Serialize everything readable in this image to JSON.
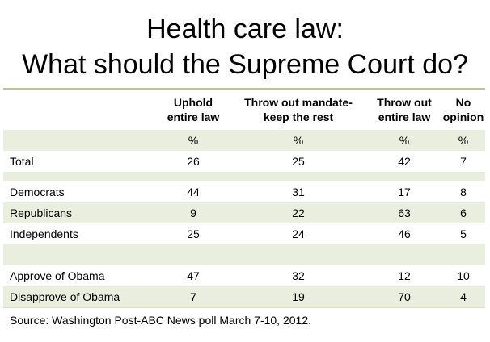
{
  "title_line1": "Health care law:",
  "title_line2": "What should the Supreme Court do?",
  "chart_data": {
    "type": "table",
    "columns": [
      {
        "line1": "Uphold",
        "line2": "entire law"
      },
      {
        "line1": "Throw out mandate-",
        "line2": "keep the rest"
      },
      {
        "line1": "Throw out",
        "line2": "entire law"
      },
      {
        "line1": "No",
        "line2": "opinion"
      }
    ],
    "unit_row": [
      "%",
      "%",
      "%",
      "%"
    ],
    "rows": [
      {
        "label": "Total",
        "values": [
          "26",
          "25",
          "42",
          "7"
        ]
      },
      {
        "label": "Democrats",
        "values": [
          "44",
          "31",
          "17",
          "8"
        ]
      },
      {
        "label": "Republicans",
        "values": [
          "9",
          "22",
          "63",
          "6"
        ]
      },
      {
        "label": "Independents",
        "values": [
          "25",
          "24",
          "46",
          "5"
        ]
      },
      {
        "label": "Approve of Obama",
        "values": [
          "47",
          "32",
          "12",
          "10"
        ]
      },
      {
        "label": "Disapprove of Obama",
        "values": [
          "7",
          "19",
          "70",
          "4"
        ]
      }
    ],
    "source": "Source: Washington Post-ABC News poll March 7-10, 2012."
  }
}
